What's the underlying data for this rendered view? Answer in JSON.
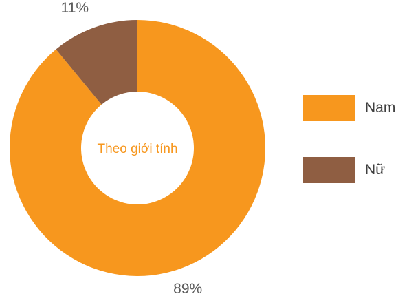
{
  "chart_data": {
    "type": "donut",
    "title": "Theo giới tính",
    "categories": [
      "Nam",
      "Nữ"
    ],
    "values": [
      89,
      11
    ],
    "value_labels": [
      "89%",
      "11%"
    ],
    "colors": [
      "#f7971e",
      "#8f5e42"
    ],
    "legend_position": "right"
  }
}
